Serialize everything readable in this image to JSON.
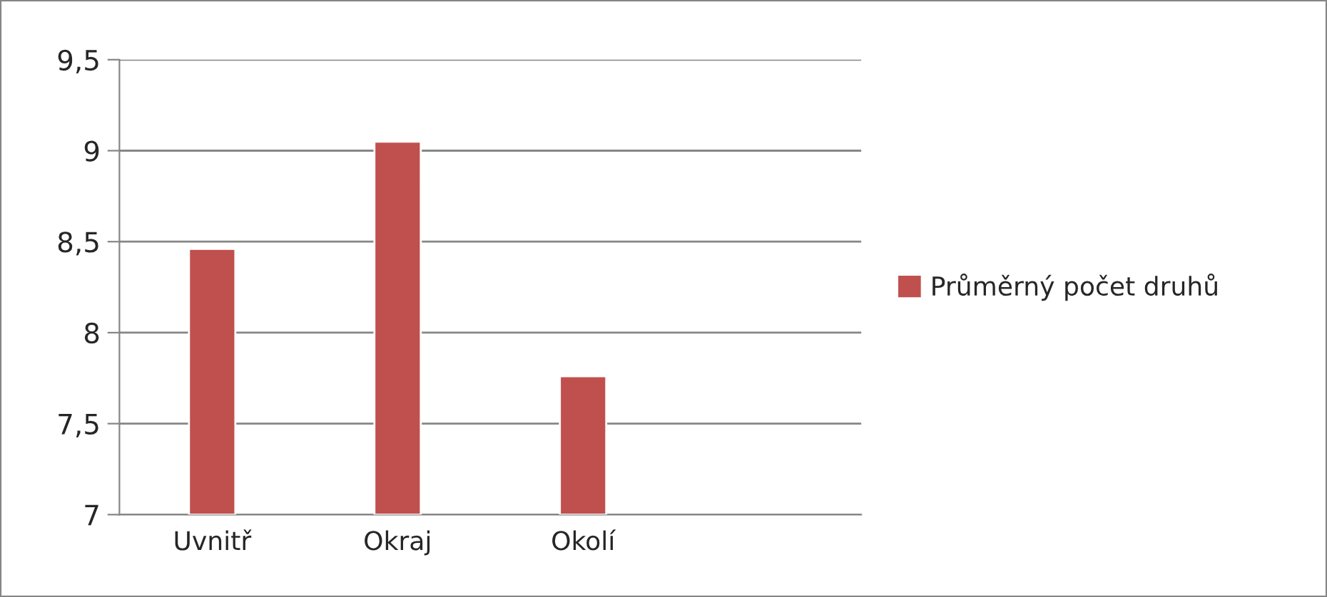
{
  "chart_data": {
    "type": "bar",
    "categories": [
      "Uvnitř",
      "Okraj",
      "Okolí",
      null
    ],
    "series": [
      {
        "name": "Průměrný počet druhů",
        "color": "#c0504d",
        "values": [
          8.46,
          9.05,
          7.76,
          null
        ]
      }
    ],
    "ylim": [
      7,
      9.5
    ],
    "yticks": [
      {
        "value": 7,
        "label": "7"
      },
      {
        "value": 7.5,
        "label": "7,5"
      },
      {
        "value": 8,
        "label": "8"
      },
      {
        "value": 8.5,
        "label": "8,5"
      },
      {
        "value": 9,
        "label": "9"
      },
      {
        "value": 9.5,
        "label": "9,5"
      }
    ],
    "grid": "y",
    "legend": "right"
  }
}
